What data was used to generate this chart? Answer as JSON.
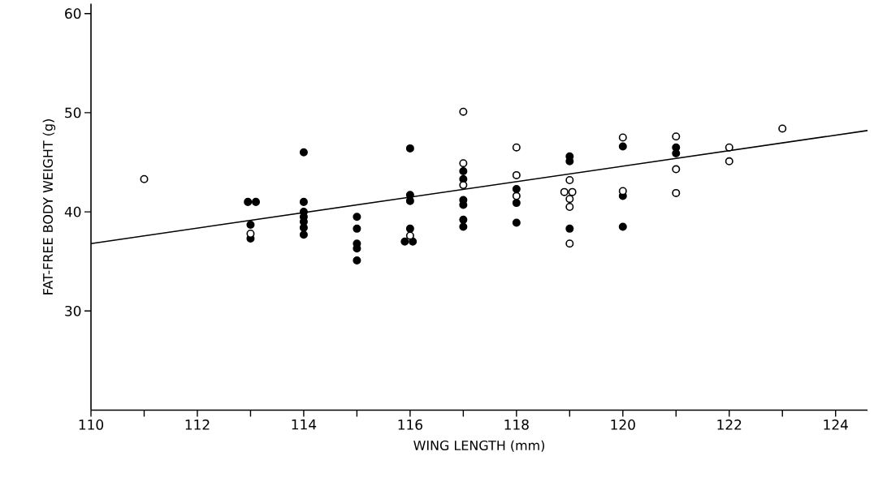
{
  "chart_data": {
    "type": "scatter",
    "xlabel": "WING LENGTH (mm)",
    "ylabel": "FAT-FREE BODY WEIGHT (g)",
    "xlim": [
      110,
      124.6
    ],
    "ylim": [
      20,
      61
    ],
    "xticks": [
      110,
      {
        "value": 111,
        "label": null
      },
      112,
      {
        "value": 113,
        "label": null
      },
      114,
      {
        "value": 115,
        "label": null
      },
      116,
      {
        "value": 117,
        "label": null
      },
      118,
      {
        "value": 119,
        "label": null
      },
      120,
      {
        "value": 121,
        "label": null
      },
      122,
      {
        "value": 123,
        "label": null
      },
      124
    ],
    "yticks": [
      30,
      40,
      50,
      60
    ],
    "grid": false,
    "marker": "circle",
    "series": [
      {
        "color": "#000000",
        "x": [
          112.95,
          113.1,
          113,
          113,
          114,
          114,
          114,
          114,
          114,
          114,
          114,
          115,
          115,
          115,
          115,
          115,
          116,
          116,
          116,
          116,
          115.9,
          116.05,
          117,
          117,
          117,
          117,
          117,
          117,
          118,
          118,
          118,
          119,
          119,
          119,
          120,
          120,
          120,
          121,
          121
        ],
        "values": [
          41.0,
          41.0,
          38.7,
          37.3,
          46.0,
          41.0,
          40.0,
          39.5,
          39.0,
          38.4,
          37.7,
          39.5,
          38.3,
          36.8,
          36.3,
          35.1,
          46.4,
          41.7,
          41.1,
          38.3,
          37.0,
          37.0,
          44.1,
          43.3,
          41.2,
          40.7,
          39.2,
          38.5,
          42.3,
          40.9,
          38.9,
          45.6,
          45.1,
          38.3,
          46.6,
          41.6,
          38.5,
          46.5,
          45.9
        ]
      },
      {
        "color": "#ffffff",
        "x": [
          111,
          113,
          116,
          117,
          117,
          117,
          118,
          118,
          118,
          119,
          118.9,
          119.05,
          119,
          119,
          119,
          120,
          120,
          121,
          121,
          121,
          122,
          122,
          123
        ],
        "values": [
          43.3,
          37.8,
          37.6,
          50.1,
          44.9,
          42.7,
          46.5,
          43.7,
          41.6,
          43.2,
          42.0,
          42.0,
          41.3,
          40.5,
          36.8,
          47.5,
          42.1,
          47.6,
          44.3,
          41.9,
          46.5,
          45.1,
          48.4
        ]
      },
      {
        "type": "line",
        "color": "#000000",
        "marker": "none",
        "line_style": "solid",
        "x": [
          110,
          124.6
        ],
        "values": [
          36.8,
          48.2
        ]
      }
    ]
  }
}
